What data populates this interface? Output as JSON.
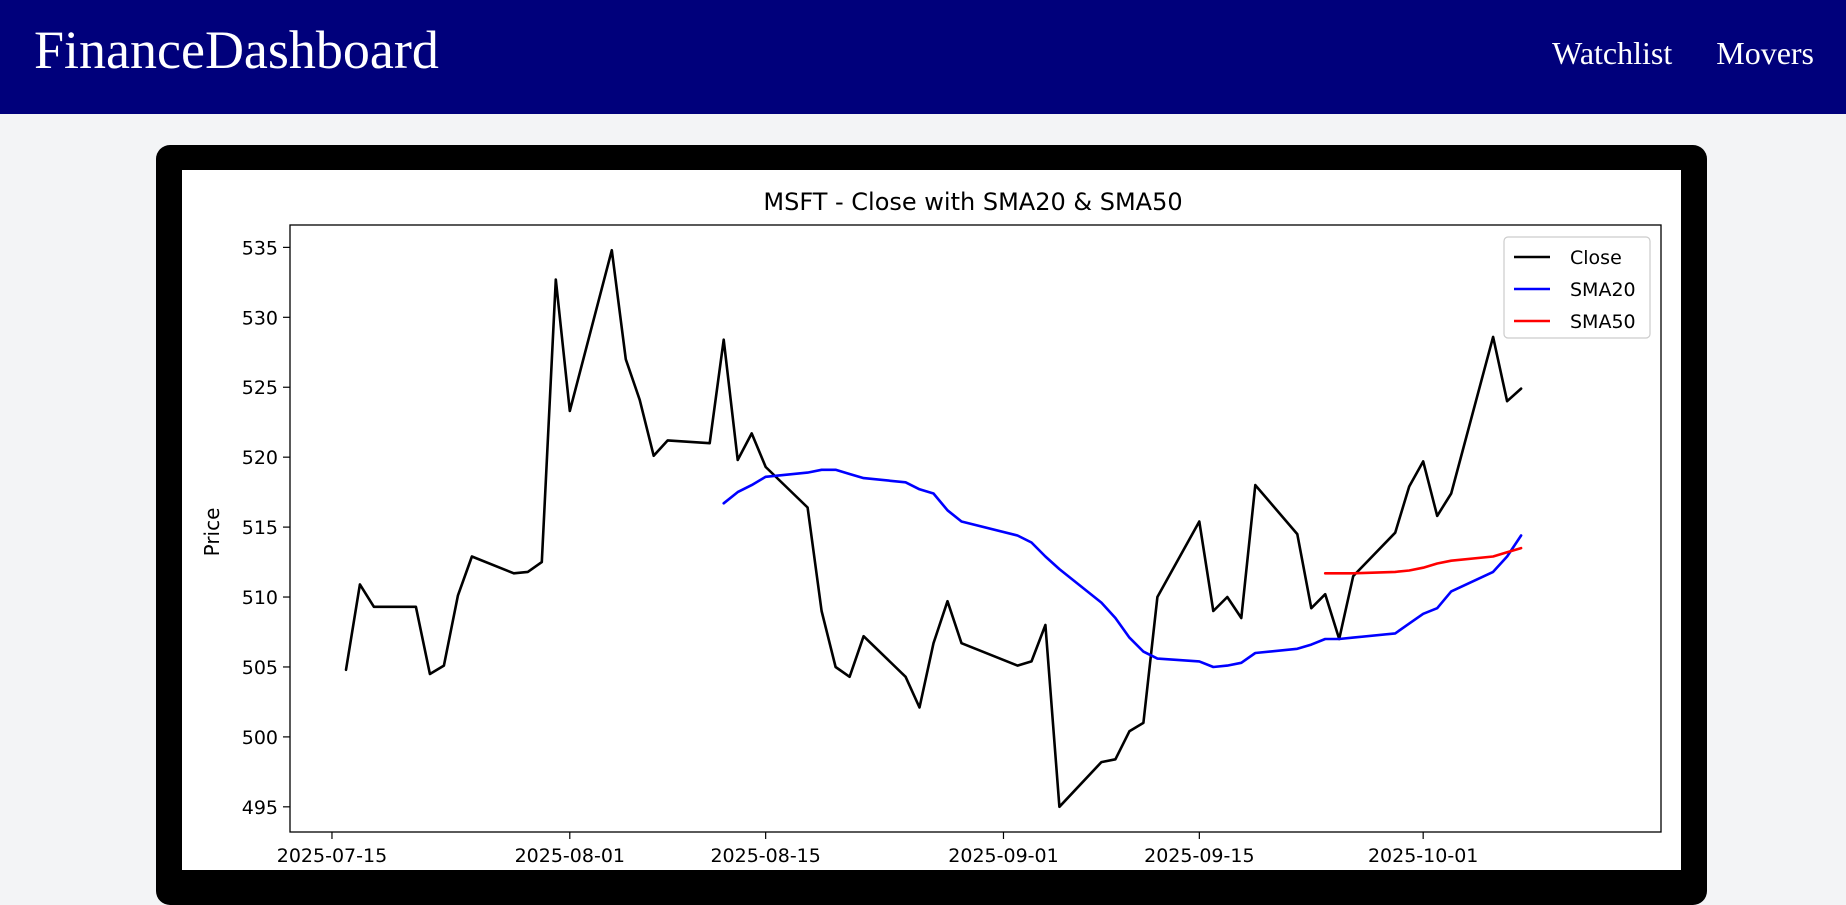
{
  "header": {
    "brand": "FinanceDashboard",
    "nav": [
      {
        "label": "Watchlist"
      },
      {
        "label": "Movers"
      }
    ]
  },
  "colors": {
    "header_bg": "#00007b",
    "close": "#000000",
    "sma20": "#0000ff",
    "sma50": "#ff0000"
  },
  "chart_data": {
    "type": "line",
    "title": "MSFT - Close with SMA20 & SMA50",
    "xlabel": "",
    "ylabel": "Price",
    "ylim": [
      493.2,
      536.6
    ],
    "xlim": [
      "2025-07-12",
      "2025-10-18"
    ],
    "y_ticks": [
      495,
      500,
      505,
      510,
      515,
      520,
      525,
      530,
      535
    ],
    "x_ticks": [
      "2025-07-15",
      "2025-08-01",
      "2025-08-15",
      "2025-09-01",
      "2025-09-15",
      "2025-10-01"
    ],
    "legend_position": "top-right",
    "grid": false,
    "series": [
      {
        "name": "Close",
        "color": "#000000",
        "points": [
          [
            "2025-07-16",
            504.8
          ],
          [
            "2025-07-17",
            510.9
          ],
          [
            "2025-07-18",
            509.3
          ],
          [
            "2025-07-21",
            509.3
          ],
          [
            "2025-07-22",
            504.5
          ],
          [
            "2025-07-23",
            505.1
          ],
          [
            "2025-07-24",
            510.1
          ],
          [
            "2025-07-25",
            512.9
          ],
          [
            "2025-07-28",
            511.7
          ],
          [
            "2025-07-29",
            511.8
          ],
          [
            "2025-07-30",
            512.5
          ],
          [
            "2025-07-31",
            532.7
          ],
          [
            "2025-08-01",
            523.3
          ],
          [
            "2025-08-04",
            534.8
          ],
          [
            "2025-08-05",
            527.0
          ],
          [
            "2025-08-06",
            524.1
          ],
          [
            "2025-08-07",
            520.1
          ],
          [
            "2025-08-08",
            521.2
          ],
          [
            "2025-08-11",
            521.0
          ],
          [
            "2025-08-12",
            528.4
          ],
          [
            "2025-08-13",
            519.8
          ],
          [
            "2025-08-14",
            521.7
          ],
          [
            "2025-08-15",
            519.3
          ],
          [
            "2025-08-18",
            516.4
          ],
          [
            "2025-08-19",
            509.0
          ],
          [
            "2025-08-20",
            505.0
          ],
          [
            "2025-08-21",
            504.3
          ],
          [
            "2025-08-22",
            507.2
          ],
          [
            "2025-08-25",
            504.3
          ],
          [
            "2025-08-26",
            502.1
          ],
          [
            "2025-08-27",
            506.7
          ],
          [
            "2025-08-28",
            509.7
          ],
          [
            "2025-08-29",
            506.7
          ],
          [
            "2025-09-02",
            505.1
          ],
          [
            "2025-09-03",
            505.4
          ],
          [
            "2025-09-04",
            508.0
          ],
          [
            "2025-09-05",
            495.0
          ],
          [
            "2025-09-08",
            498.2
          ],
          [
            "2025-09-09",
            498.4
          ],
          [
            "2025-09-10",
            500.4
          ],
          [
            "2025-09-11",
            501.0
          ],
          [
            "2025-09-12",
            510.0
          ],
          [
            "2025-09-15",
            515.4
          ],
          [
            "2025-09-16",
            509.0
          ],
          [
            "2025-09-17",
            510.0
          ],
          [
            "2025-09-18",
            508.5
          ],
          [
            "2025-09-19",
            518.0
          ],
          [
            "2025-09-22",
            514.5
          ],
          [
            "2025-09-23",
            509.2
          ],
          [
            "2025-09-24",
            510.2
          ],
          [
            "2025-09-25",
            507.0
          ],
          [
            "2025-09-26",
            511.5
          ],
          [
            "2025-09-29",
            514.6
          ],
          [
            "2025-09-30",
            517.9
          ],
          [
            "2025-10-01",
            519.7
          ],
          [
            "2025-10-02",
            515.8
          ],
          [
            "2025-10-03",
            517.4
          ],
          [
            "2025-10-06",
            528.6
          ],
          [
            "2025-10-07",
            524.0
          ],
          [
            "2025-10-08",
            524.9
          ]
        ]
      },
      {
        "name": "SMA20",
        "color": "#0000ff",
        "points": [
          [
            "2025-08-12",
            516.7
          ],
          [
            "2025-08-13",
            517.5
          ],
          [
            "2025-08-14",
            518.0
          ],
          [
            "2025-08-15",
            518.6
          ],
          [
            "2025-08-18",
            518.9
          ],
          [
            "2025-08-19",
            519.1
          ],
          [
            "2025-08-20",
            519.1
          ],
          [
            "2025-08-21",
            518.8
          ],
          [
            "2025-08-22",
            518.5
          ],
          [
            "2025-08-25",
            518.2
          ],
          [
            "2025-08-26",
            517.7
          ],
          [
            "2025-08-27",
            517.4
          ],
          [
            "2025-08-28",
            516.2
          ],
          [
            "2025-08-29",
            515.4
          ],
          [
            "2025-09-02",
            514.4
          ],
          [
            "2025-09-03",
            513.9
          ],
          [
            "2025-09-04",
            512.9
          ],
          [
            "2025-09-05",
            512.0
          ],
          [
            "2025-09-08",
            509.6
          ],
          [
            "2025-09-09",
            508.5
          ],
          [
            "2025-09-10",
            507.1
          ],
          [
            "2025-09-11",
            506.1
          ],
          [
            "2025-09-12",
            505.6
          ],
          [
            "2025-09-15",
            505.4
          ],
          [
            "2025-09-16",
            505.0
          ],
          [
            "2025-09-17",
            505.1
          ],
          [
            "2025-09-18",
            505.3
          ],
          [
            "2025-09-19",
            506.0
          ],
          [
            "2025-09-22",
            506.3
          ],
          [
            "2025-09-23",
            506.6
          ],
          [
            "2025-09-24",
            507.0
          ],
          [
            "2025-09-25",
            507.0
          ],
          [
            "2025-09-26",
            507.1
          ],
          [
            "2025-09-29",
            507.4
          ],
          [
            "2025-09-30",
            508.1
          ],
          [
            "2025-10-01",
            508.8
          ],
          [
            "2025-10-02",
            509.2
          ],
          [
            "2025-10-03",
            510.4
          ],
          [
            "2025-10-06",
            511.8
          ],
          [
            "2025-10-07",
            512.9
          ],
          [
            "2025-10-08",
            514.4
          ]
        ]
      },
      {
        "name": "SMA50",
        "color": "#ff0000",
        "points": [
          [
            "2025-09-24",
            511.7
          ],
          [
            "2025-09-25",
            511.7
          ],
          [
            "2025-09-26",
            511.7
          ],
          [
            "2025-09-29",
            511.8
          ],
          [
            "2025-09-30",
            511.9
          ],
          [
            "2025-10-01",
            512.1
          ],
          [
            "2025-10-02",
            512.4
          ],
          [
            "2025-10-03",
            512.6
          ],
          [
            "2025-10-06",
            512.9
          ],
          [
            "2025-10-07",
            513.2
          ],
          [
            "2025-10-08",
            513.5
          ]
        ]
      }
    ]
  }
}
